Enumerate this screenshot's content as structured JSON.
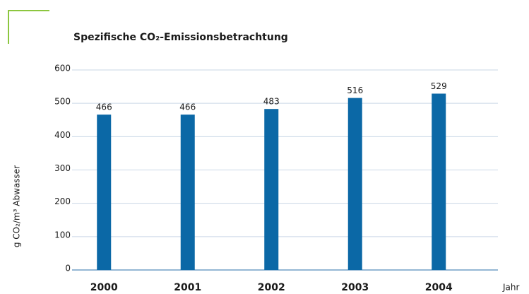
{
  "chart_data": {
    "type": "bar",
    "title": "Spezifische CO₂-Emissionsbetrachtung",
    "y_label": "g CO₂/m³ Abwasser",
    "x_label": "Jahr",
    "categories": [
      "2000",
      "2001",
      "2002",
      "2003",
      "2004"
    ],
    "values": [
      466,
      466,
      483,
      516,
      529
    ],
    "color": "#0b68a6",
    "ylim": [
      0,
      600
    ],
    "yticks": [
      0,
      100,
      200,
      300,
      400,
      500,
      600
    ],
    "grid": true
  }
}
